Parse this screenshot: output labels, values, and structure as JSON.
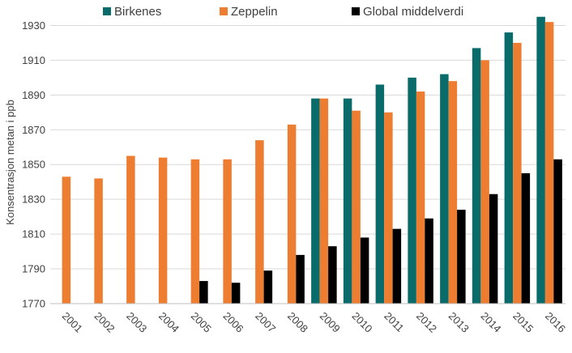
{
  "chart_data": {
    "type": "bar",
    "title": "",
    "xlabel": "",
    "ylabel": "Konsentrasjon metan  i ppb",
    "ylim": [
      1770,
      1940
    ],
    "yticks": [
      1770,
      1790,
      1810,
      1830,
      1850,
      1870,
      1890,
      1910,
      1930
    ],
    "grid": true,
    "legend_position": "top",
    "categories": [
      "2001",
      "2002",
      "2003",
      "2004",
      "2005",
      "2006",
      "2007",
      "2008",
      "2009",
      "2010",
      "2011",
      "2012",
      "2013",
      "2014",
      "2015",
      "2016"
    ],
    "series": [
      {
        "name": "Birkenes",
        "color": "#0a6b6b",
        "values": [
          null,
          null,
          null,
          null,
          null,
          null,
          null,
          null,
          1888,
          1888,
          1896,
          1900,
          1902,
          1917,
          1926,
          1935
        ]
      },
      {
        "name": "Zeppelin",
        "color": "#ed7d31",
        "values": [
          1843,
          1842,
          1855,
          1854,
          1853,
          1853,
          1864,
          1873,
          1888,
          1881,
          1880,
          1892,
          1898,
          1910,
          1920,
          1932
        ]
      },
      {
        "name": "Global middelverdi",
        "color": "#000000",
        "values": [
          null,
          null,
          null,
          null,
          1783,
          1782,
          1789,
          1798,
          1803,
          1808,
          1813,
          1819,
          1824,
          1833,
          1845,
          1853
        ]
      }
    ]
  }
}
